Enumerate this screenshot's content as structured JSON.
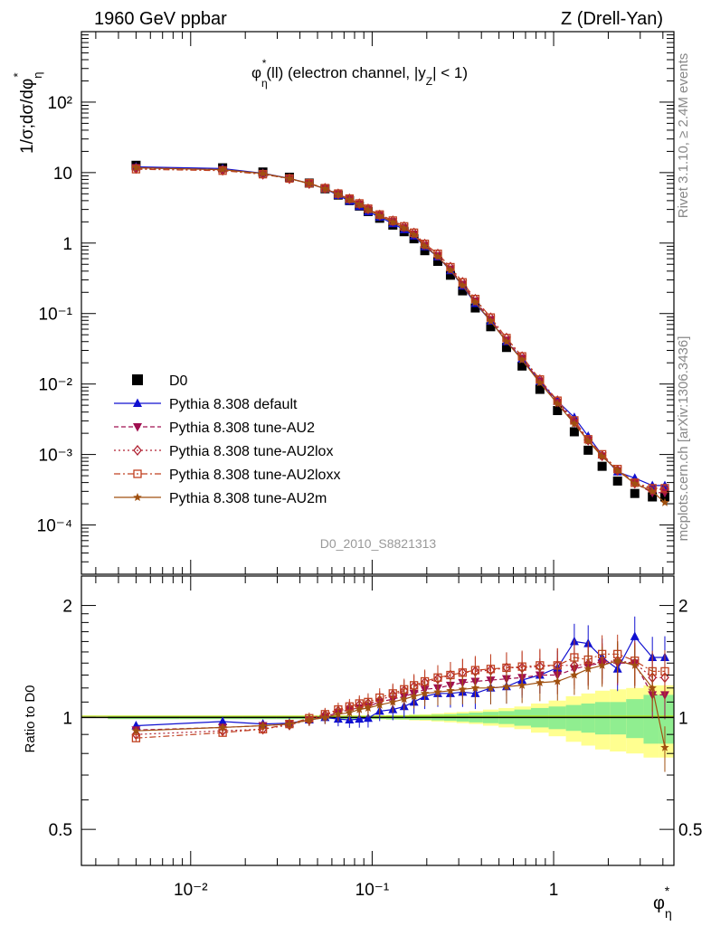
{
  "header": {
    "left_title": "1960 GeV ppbar",
    "right_title": "Z (Drell-Yan)"
  },
  "side_labels": {
    "rivet": "Rivet 3.1.10, ≥ 2.4M events",
    "mcplots": "mcplots.cern.ch [arXiv:1306.3436]"
  },
  "main_plot": {
    "title_phi": "φ",
    "title_star": "*",
    "title_eta": "η",
    "title_rest": "(ll) (electron channel, |y",
    "title_z": "Z",
    "title_end": "| < 1)",
    "ylabel": "1/σ;dσ/dφ",
    "ylabel_star": "*",
    "ylabel_eta": "η",
    "analysis_id": "D0_2010_S8821313",
    "yticks": [
      "10⁻⁴",
      "10⁻³",
      "10⁻²",
      "10⁻¹",
      "1",
      "10",
      "10²"
    ]
  },
  "ratio_plot": {
    "ylabel": "Ratio to D0",
    "yticks": [
      "0.5",
      "1",
      "2"
    ]
  },
  "xaxis": {
    "label_phi": "φ",
    "label_star": "*",
    "label_eta": "η",
    "ticks": [
      "10⁻²",
      "10⁻¹",
      "1"
    ]
  },
  "colors": {
    "data": "#000000",
    "default": "#1010d0",
    "au2": "#a01050",
    "au2lox": "#b02030",
    "au2loxx": "#c04020",
    "au2m": "#a05010",
    "band_green": "#90ee90",
    "band_yellow": "#ffff90"
  },
  "chart_data": {
    "type": "scatter",
    "xscale": "log",
    "yscale": "log",
    "xlim": [
      0.0025,
      4.6
    ],
    "ylim": [
      2e-05,
      1000
    ],
    "ratio_ylim": [
      0.4,
      2.4
    ],
    "x": [
      0.005,
      0.015,
      0.025,
      0.035,
      0.045,
      0.055,
      0.065,
      0.075,
      0.085,
      0.095,
      0.11,
      0.13,
      0.15,
      0.17,
      0.195,
      0.23,
      0.27,
      0.315,
      0.37,
      0.45,
      0.55,
      0.67,
      0.84,
      1.05,
      1.3,
      1.55,
      1.85,
      2.25,
      2.8,
      3.5,
      4.1
    ],
    "series": [
      {
        "name": "D0",
        "marker": "square",
        "values": [
          12.7,
          11.7,
          10.2,
          8.6,
          7.1,
          5.9,
          4.8,
          4.0,
          3.35,
          2.8,
          2.25,
          1.8,
          1.45,
          1.15,
          0.78,
          0.55,
          0.35,
          0.21,
          0.12,
          0.065,
          0.033,
          0.018,
          0.0084,
          0.0042,
          0.0021,
          0.00115,
          0.00068,
          0.00042,
          0.00028,
          0.00025,
          0.00025
        ]
      },
      {
        "name": "Pythia 8.308 default",
        "marker": "triangle",
        "ratio": [
          0.95,
          0.975,
          0.96,
          0.965,
          0.985,
          1.0,
          0.99,
          0.985,
          0.99,
          0.995,
          1.04,
          1.05,
          1.07,
          1.1,
          1.14,
          1.16,
          1.16,
          1.17,
          1.16,
          1.2,
          1.21,
          1.26,
          1.3,
          1.36,
          1.6,
          1.58,
          1.45,
          1.35,
          1.65,
          1.45,
          1.45
        ]
      },
      {
        "name": "Pythia 8.308 tune-AU2",
        "marker": "triangle-down",
        "ratio": [
          0.925,
          0.94,
          0.95,
          0.96,
          0.985,
          1.005,
          1.03,
          1.05,
          1.06,
          1.07,
          1.1,
          1.12,
          1.14,
          1.16,
          1.19,
          1.2,
          1.22,
          1.24,
          1.25,
          1.26,
          1.27,
          1.28,
          1.3,
          1.3,
          1.35,
          1.38,
          1.4,
          1.4,
          1.4,
          1.15,
          1.15
        ]
      },
      {
        "name": "Pythia 8.308 tune-AU2lox",
        "marker": "diamond",
        "ratio": [
          0.9,
          0.92,
          0.93,
          0.955,
          0.985,
          1.015,
          1.04,
          1.06,
          1.08,
          1.09,
          1.11,
          1.15,
          1.18,
          1.21,
          1.24,
          1.27,
          1.3,
          1.32,
          1.33,
          1.34,
          1.36,
          1.36,
          1.37,
          1.38,
          1.38,
          1.39,
          1.41,
          1.42,
          1.4,
          1.28,
          1.28
        ]
      },
      {
        "name": "Pythia 8.308 tune-AU2loxx",
        "marker": "square-open",
        "ratio": [
          0.88,
          0.91,
          0.93,
          0.96,
          0.995,
          1.02,
          1.05,
          1.07,
          1.09,
          1.1,
          1.13,
          1.16,
          1.19,
          1.22,
          1.25,
          1.28,
          1.3,
          1.32,
          1.34,
          1.35,
          1.36,
          1.37,
          1.38,
          1.38,
          1.45,
          1.43,
          1.48,
          1.48,
          1.42,
          1.33,
          1.33
        ]
      },
      {
        "name": "Pythia 8.308 tune-AU2m",
        "marker": "star",
        "ratio": [
          0.92,
          0.94,
          0.95,
          0.96,
          0.985,
          1.0,
          1.02,
          1.03,
          1.05,
          1.06,
          1.08,
          1.1,
          1.12,
          1.14,
          1.16,
          1.17,
          1.18,
          1.19,
          1.2,
          1.2,
          1.21,
          1.22,
          1.24,
          1.25,
          1.3,
          1.35,
          1.38,
          1.42,
          1.38,
          1.2,
          0.83
        ]
      }
    ],
    "uncertainty_band": {
      "green": [
        0.01,
        0.01,
        0.01,
        0.01,
        0.01,
        0.01,
        0.01,
        0.01,
        0.01,
        0.01,
        0.01,
        0.012,
        0.012,
        0.015,
        0.015,
        0.018,
        0.02,
        0.025,
        0.03,
        0.035,
        0.04,
        0.05,
        0.06,
        0.07,
        0.08,
        0.09,
        0.1,
        0.1,
        0.12,
        0.15,
        0.15
      ],
      "yellow": [
        0.01,
        0.01,
        0.01,
        0.01,
        0.01,
        0.01,
        0.01,
        0.01,
        0.01,
        0.01,
        0.012,
        0.014,
        0.015,
        0.018,
        0.02,
        0.025,
        0.03,
        0.035,
        0.04,
        0.05,
        0.06,
        0.07,
        0.09,
        0.11,
        0.14,
        0.16,
        0.18,
        0.19,
        0.2,
        0.22,
        0.22
      ]
    }
  }
}
